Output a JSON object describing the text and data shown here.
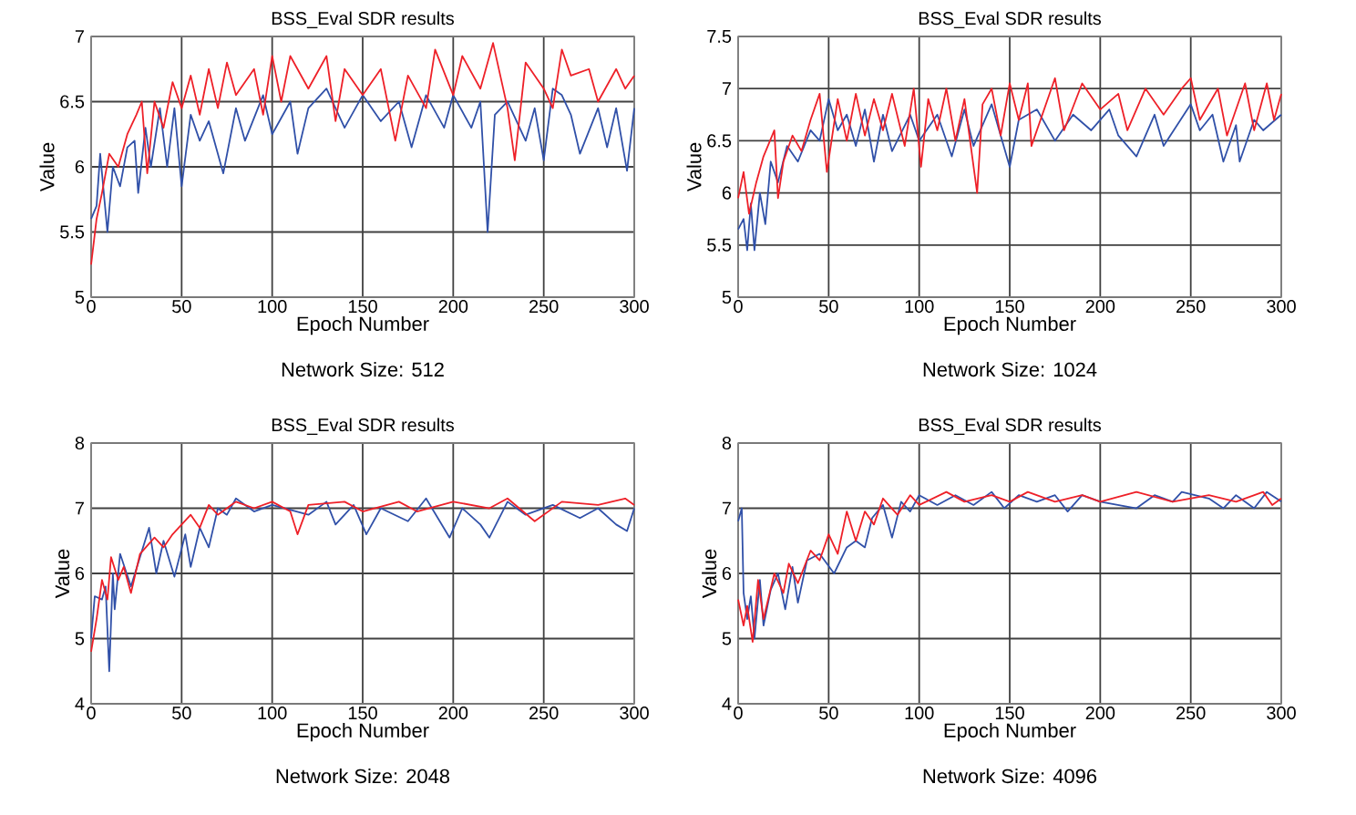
{
  "chart_data": [
    {
      "type": "line",
      "title": "BSS_Eval SDR results",
      "subtitle": "Network Size: 512",
      "xlabel": "Epoch Number",
      "ylabel": "Value",
      "xlim": [
        0,
        300
      ],
      "ylim": [
        5,
        7
      ],
      "xticks": [
        0,
        50,
        100,
        150,
        200,
        250,
        300
      ],
      "yticks": [
        5,
        5.5,
        6,
        6.5,
        7
      ],
      "grid": true,
      "series": [
        {
          "color": "#3050a8",
          "x": [
            0,
            3,
            5,
            9,
            12,
            16,
            20,
            24,
            26,
            30,
            33,
            38,
            42,
            46,
            50,
            55,
            60,
            65,
            70,
            73,
            80,
            85,
            95,
            100,
            110,
            114,
            120,
            130,
            140,
            150,
            160,
            170,
            177,
            185,
            195,
            200,
            210,
            215,
            219,
            223,
            230,
            240,
            245,
            250,
            255,
            260,
            265,
            270,
            280,
            285,
            290,
            296,
            300
          ],
          "values": [
            5.6,
            5.7,
            6.1,
            5.5,
            6.0,
            5.85,
            6.15,
            6.2,
            5.8,
            6.3,
            6.0,
            6.45,
            6.0,
            6.45,
            5.85,
            6.4,
            6.2,
            6.35,
            6.1,
            5.95,
            6.45,
            6.2,
            6.55,
            6.25,
            6.5,
            6.1,
            6.45,
            6.6,
            6.3,
            6.55,
            6.35,
            6.5,
            6.15,
            6.55,
            6.3,
            6.55,
            6.3,
            6.5,
            5.5,
            6.4,
            6.5,
            6.2,
            6.45,
            6.05,
            6.6,
            6.55,
            6.4,
            6.1,
            6.45,
            6.15,
            6.45,
            5.97,
            6.45
          ]
        },
        {
          "color": "#ee2028",
          "x": [
            0,
            3,
            6,
            10,
            15,
            20,
            25,
            28,
            31,
            35,
            40,
            45,
            50,
            55,
            60,
            65,
            70,
            75,
            80,
            90,
            95,
            100,
            105,
            110,
            120,
            130,
            135,
            140,
            150,
            160,
            168,
            175,
            185,
            190,
            200,
            205,
            215,
            222,
            230,
            234,
            240,
            250,
            255,
            260,
            265,
            275,
            280,
            290,
            295,
            300
          ],
          "values": [
            5.25,
            5.6,
            5.8,
            6.1,
            6.0,
            6.25,
            6.4,
            6.5,
            5.95,
            6.5,
            6.3,
            6.65,
            6.45,
            6.7,
            6.4,
            6.75,
            6.45,
            6.8,
            6.55,
            6.75,
            6.4,
            6.85,
            6.5,
            6.85,
            6.6,
            6.85,
            6.35,
            6.75,
            6.55,
            6.75,
            6.2,
            6.7,
            6.45,
            6.9,
            6.55,
            6.85,
            6.6,
            6.95,
            6.45,
            6.05,
            6.8,
            6.6,
            6.45,
            6.9,
            6.7,
            6.75,
            6.5,
            6.75,
            6.6,
            6.7
          ]
        }
      ]
    },
    {
      "type": "line",
      "title": "BSS_Eval SDR results",
      "subtitle": "Network Size: 1024",
      "xlabel": "Epoch Number",
      "ylabel": "Value",
      "xlim": [
        0,
        300
      ],
      "ylim": [
        5,
        7.5
      ],
      "xticks": [
        0,
        50,
        100,
        150,
        200,
        250,
        300
      ],
      "yticks": [
        5,
        5.5,
        6,
        6.5,
        7,
        7.5
      ],
      "grid": true,
      "series": [
        {
          "color": "#3050a8",
          "x": [
            0,
            3,
            5,
            7,
            9,
            12,
            15,
            18,
            22,
            27,
            33,
            40,
            45,
            50,
            55,
            60,
            65,
            70,
            75,
            80,
            85,
            95,
            100,
            110,
            118,
            125,
            130,
            140,
            150,
            155,
            165,
            175,
            185,
            195,
            205,
            210,
            220,
            230,
            235,
            250,
            255,
            262,
            268,
            275,
            277,
            285,
            290,
            300
          ],
          "values": [
            5.65,
            5.75,
            5.45,
            5.9,
            5.45,
            6.0,
            5.7,
            6.3,
            6.1,
            6.45,
            6.3,
            6.6,
            6.5,
            6.9,
            6.6,
            6.75,
            6.45,
            6.8,
            6.3,
            6.75,
            6.4,
            6.75,
            6.5,
            6.75,
            6.35,
            6.8,
            6.45,
            6.85,
            6.25,
            6.7,
            6.8,
            6.5,
            6.75,
            6.6,
            6.8,
            6.55,
            6.35,
            6.75,
            6.45,
            6.85,
            6.6,
            6.75,
            6.3,
            6.65,
            6.3,
            6.7,
            6.6,
            6.75
          ]
        },
        {
          "color": "#ee2028",
          "x": [
            0,
            3,
            6,
            10,
            14,
            20,
            22,
            25,
            30,
            35,
            40,
            45,
            49,
            55,
            60,
            65,
            70,
            75,
            80,
            85,
            92,
            97,
            101,
            105,
            110,
            115,
            120,
            125,
            132,
            135,
            140,
            145,
            150,
            155,
            160,
            162,
            175,
            180,
            190,
            200,
            210,
            215,
            225,
            235,
            245,
            250,
            255,
            265,
            270,
            280,
            285,
            292,
            296,
            300
          ],
          "values": [
            5.95,
            6.2,
            5.8,
            6.1,
            6.35,
            6.6,
            5.95,
            6.3,
            6.55,
            6.4,
            6.7,
            6.95,
            6.2,
            6.9,
            6.5,
            6.95,
            6.55,
            6.9,
            6.6,
            6.95,
            6.45,
            7.0,
            6.25,
            6.9,
            6.6,
            7.0,
            6.5,
            6.9,
            6.0,
            6.85,
            7.0,
            6.55,
            7.05,
            6.7,
            7.05,
            6.45,
            7.1,
            6.6,
            7.05,
            6.8,
            6.95,
            6.6,
            7.0,
            6.75,
            7.0,
            7.1,
            6.7,
            7.0,
            6.55,
            7.05,
            6.6,
            7.05,
            6.7,
            6.95
          ]
        }
      ]
    },
    {
      "type": "line",
      "title": "BSS_Eval SDR results",
      "subtitle": "Network Size: 2048",
      "xlabel": "Epoch Number",
      "ylabel": "Value",
      "xlim": [
        0,
        300
      ],
      "ylim": [
        4,
        8
      ],
      "xticks": [
        0,
        50,
        100,
        150,
        200,
        250,
        300
      ],
      "yticks": [
        4,
        5,
        6,
        7,
        8
      ],
      "grid": true,
      "series": [
        {
          "color": "#3050a8",
          "x": [
            0,
            2,
            6,
            8,
            10,
            12,
            13,
            16,
            22,
            32,
            36,
            40,
            46,
            52,
            55,
            60,
            65,
            70,
            75,
            80,
            90,
            100,
            120,
            130,
            135,
            145,
            152,
            160,
            175,
            185,
            198,
            205,
            215,
            220,
            230,
            240,
            255,
            270,
            280,
            290,
            296,
            300
          ],
          "values": [
            5.0,
            5.65,
            5.6,
            5.8,
            4.5,
            6.0,
            5.45,
            6.3,
            5.8,
            6.7,
            6.0,
            6.5,
            5.95,
            6.6,
            6.1,
            6.7,
            6.4,
            7.0,
            6.9,
            7.15,
            6.95,
            7.05,
            6.9,
            7.1,
            6.75,
            7.05,
            6.6,
            7.0,
            6.8,
            7.15,
            6.55,
            7.0,
            6.75,
            6.55,
            7.1,
            6.9,
            7.05,
            6.85,
            7.0,
            6.75,
            6.65,
            7.0
          ]
        },
        {
          "color": "#ee2028",
          "x": [
            0,
            3,
            6,
            9,
            11,
            15,
            18,
            22,
            27,
            35,
            40,
            45,
            50,
            55,
            60,
            65,
            70,
            80,
            90,
            100,
            110,
            114,
            120,
            140,
            150,
            170,
            180,
            200,
            220,
            230,
            245,
            260,
            280,
            295,
            300
          ],
          "values": [
            4.8,
            5.3,
            5.9,
            5.6,
            6.25,
            5.9,
            6.1,
            5.7,
            6.3,
            6.55,
            6.4,
            6.6,
            6.75,
            6.9,
            6.7,
            7.05,
            6.9,
            7.1,
            7.0,
            7.1,
            6.95,
            6.6,
            7.05,
            7.1,
            6.95,
            7.1,
            6.95,
            7.1,
            7.0,
            7.15,
            6.8,
            7.1,
            7.05,
            7.15,
            7.05
          ]
        }
      ]
    },
    {
      "type": "line",
      "title": "BSS_Eval SDR results",
      "subtitle": "Network Size: 4096",
      "xlabel": "Epoch Number",
      "ylabel": "Value",
      "xlim": [
        0,
        300
      ],
      "ylim": [
        4,
        8
      ],
      "xticks": [
        0,
        50,
        100,
        150,
        200,
        250,
        300
      ],
      "yticks": [
        4,
        5,
        6,
        7,
        8
      ],
      "grid": true,
      "series": [
        {
          "color": "#3050a8",
          "x": [
            0,
            2,
            3,
            5,
            7,
            9,
            12,
            14,
            18,
            22,
            26,
            30,
            33,
            38,
            45,
            53,
            60,
            65,
            70,
            74,
            80,
            85,
            90,
            95,
            100,
            110,
            120,
            130,
            140,
            147,
            155,
            165,
            175,
            182,
            190,
            200,
            220,
            230,
            240,
            245,
            260,
            268,
            275,
            285,
            292,
            300
          ],
          "values": [
            6.8,
            7.0,
            5.7,
            5.3,
            5.65,
            5.0,
            5.9,
            5.2,
            5.75,
            6.0,
            5.45,
            6.1,
            5.55,
            6.2,
            6.3,
            6.0,
            6.4,
            6.5,
            6.4,
            6.85,
            7.05,
            6.55,
            7.1,
            6.95,
            7.2,
            7.05,
            7.2,
            7.05,
            7.25,
            7.0,
            7.2,
            7.1,
            7.2,
            6.95,
            7.2,
            7.1,
            7.0,
            7.2,
            7.1,
            7.25,
            7.15,
            7.0,
            7.2,
            7.0,
            7.25,
            7.1
          ]
        },
        {
          "color": "#ee2028",
          "x": [
            0,
            3,
            5,
            8,
            11,
            14,
            20,
            25,
            28,
            33,
            40,
            45,
            50,
            55,
            60,
            65,
            70,
            75,
            80,
            88,
            95,
            100,
            115,
            125,
            140,
            150,
            160,
            175,
            190,
            200,
            220,
            240,
            260,
            275,
            290,
            295,
            300
          ],
          "values": [
            5.6,
            5.2,
            5.5,
            4.95,
            5.9,
            5.3,
            6.0,
            5.7,
            6.15,
            5.85,
            6.35,
            6.2,
            6.6,
            6.3,
            6.95,
            6.5,
            6.95,
            6.75,
            7.15,
            6.9,
            7.2,
            7.05,
            7.25,
            7.1,
            7.2,
            7.1,
            7.25,
            7.1,
            7.2,
            7.1,
            7.25,
            7.1,
            7.2,
            7.1,
            7.25,
            7.05,
            7.15
          ]
        }
      ]
    }
  ]
}
